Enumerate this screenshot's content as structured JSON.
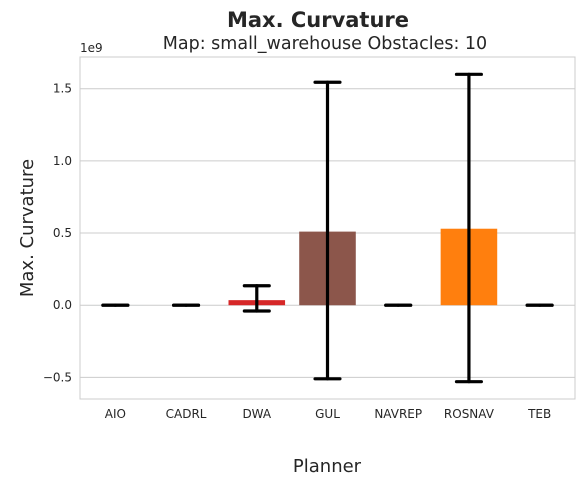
{
  "chart_data": {
    "type": "bar",
    "title": "Max. Curvature",
    "subtitle": "Map: small_warehouse Obstacles: 10",
    "xlabel": "Planner",
    "ylabel": "Max. Curvature",
    "y_offset_label": "1e9",
    "y_scale": 1000000000,
    "ylim": [
      -0.65,
      1.72
    ],
    "yticks": [
      -0.5,
      0.0,
      0.5,
      1.0,
      1.5
    ],
    "ytick_labels": [
      "−0.5",
      "0.0",
      "0.5",
      "1.0",
      "1.5"
    ],
    "grid": true,
    "categories": [
      "AIO",
      "CADRL",
      "DWA",
      "GUL",
      "NAVREP",
      "ROSNAV",
      "TEB"
    ],
    "values": [
      0.0,
      0.0,
      0.035,
      0.51,
      0.0,
      0.53,
      0.0
    ],
    "error_low": [
      0.0,
      0.0,
      -0.04,
      -0.51,
      0.0,
      -0.53,
      0.0
    ],
    "error_high": [
      0.0,
      0.0,
      0.135,
      1.545,
      0.0,
      1.6,
      0.0
    ],
    "colors": [
      "#1f77b4",
      "#9467bd",
      "#d62728",
      "#8c564b",
      "#2ca02c",
      "#ff7f0e",
      "#17becf"
    ],
    "error_color": "#000000",
    "grid_color": "#cccccc",
    "text_color": "#262626"
  }
}
